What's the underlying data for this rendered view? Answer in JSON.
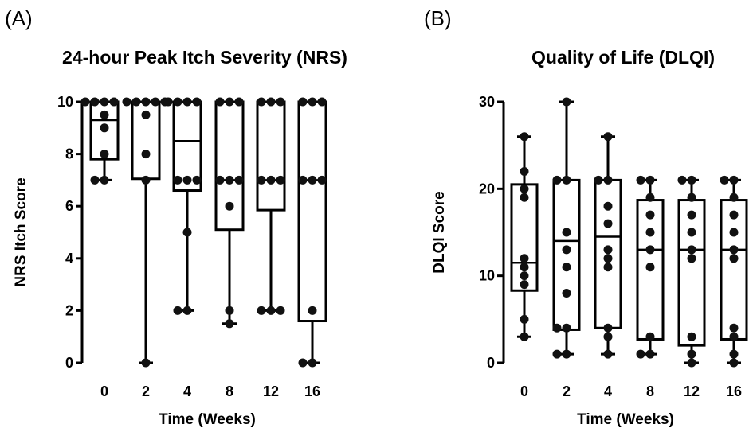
{
  "panels": {
    "a": {
      "letter": "(A)"
    },
    "b": {
      "letter": "(B)"
    }
  },
  "chart_data": [
    {
      "type": "box",
      "title": "24-hour Peak Itch Severity (NRS)",
      "xlabel": "Time (Weeks)",
      "ylabel": "NRS Itch Score",
      "ylim": [
        0,
        10
      ],
      "yticks": [
        0,
        2,
        4,
        6,
        8,
        10
      ],
      "categories": [
        "0",
        "2",
        "4",
        "8",
        "12",
        "16"
      ],
      "boxes": [
        {
          "min": 7,
          "q1": 7.8,
          "median": 9.3,
          "q3": 10,
          "max": 10
        },
        {
          "min": 0,
          "q1": 7.05,
          "median": 10,
          "q3": 10,
          "max": 10
        },
        {
          "min": 2,
          "q1": 6.6,
          "median": 8.5,
          "q3": 10,
          "max": 10
        },
        {
          "min": 1.5,
          "q1": 5.1,
          "median": 7,
          "q3": 10,
          "max": 10
        },
        {
          "min": 2,
          "q1": 5.85,
          "median": 7,
          "q3": 10,
          "max": 10
        },
        {
          "min": 0,
          "q1": 1.6,
          "median": 7,
          "q3": 10,
          "max": 10
        }
      ],
      "points": [
        [
          10,
          10,
          10,
          10,
          9.5,
          9,
          8,
          7,
          7
        ],
        [
          10,
          10,
          10,
          10,
          10,
          9.5,
          8,
          7,
          0
        ],
        [
          10,
          10,
          10,
          10,
          7,
          7,
          7,
          5,
          2,
          2
        ],
        [
          10,
          10,
          10,
          7,
          7,
          7,
          6,
          2,
          1.5
        ],
        [
          10,
          10,
          10,
          7,
          7,
          7,
          2,
          2,
          2
        ],
        [
          10,
          10,
          10,
          7,
          7,
          7,
          2,
          0,
          0
        ]
      ]
    },
    {
      "type": "box",
      "title": "Quality of Life (DLQI)",
      "xlabel": "Time (Weeks)",
      "ylabel": "DLQI Score",
      "ylim": [
        0,
        30
      ],
      "yticks": [
        0,
        10,
        20,
        30
      ],
      "categories": [
        "0",
        "2",
        "4",
        "8",
        "12",
        "16"
      ],
      "boxes": [
        {
          "min": 3,
          "q1": 8.3,
          "median": 11.5,
          "q3": 20.5,
          "max": 26
        },
        {
          "min": 1,
          "q1": 3.8,
          "median": 14,
          "q3": 21,
          "max": 30
        },
        {
          "min": 1,
          "q1": 4,
          "median": 14.5,
          "q3": 21,
          "max": 26
        },
        {
          "min": 1,
          "q1": 2.7,
          "median": 13,
          "q3": 18.7,
          "max": 21
        },
        {
          "min": 0,
          "q1": 2,
          "median": 13,
          "q3": 18.7,
          "max": 21
        },
        {
          "min": 0,
          "q1": 2.7,
          "median": 13,
          "q3": 18.7,
          "max": 21
        }
      ],
      "points": [
        [
          26,
          22,
          20,
          19,
          12,
          11,
          10,
          9,
          5,
          3
        ],
        [
          30,
          21,
          21,
          15,
          13,
          11,
          8,
          4,
          4,
          1,
          1
        ],
        [
          26,
          21,
          21,
          18,
          16,
          13,
          12,
          11,
          4,
          3,
          1
        ],
        [
          21,
          21,
          19,
          17,
          15,
          13,
          11,
          3,
          1,
          1
        ],
        [
          21,
          21,
          19,
          17,
          15,
          13,
          12,
          3,
          1,
          0
        ],
        [
          21,
          21,
          19,
          17,
          15,
          13,
          12,
          4,
          3,
          1,
          0
        ]
      ]
    }
  ]
}
